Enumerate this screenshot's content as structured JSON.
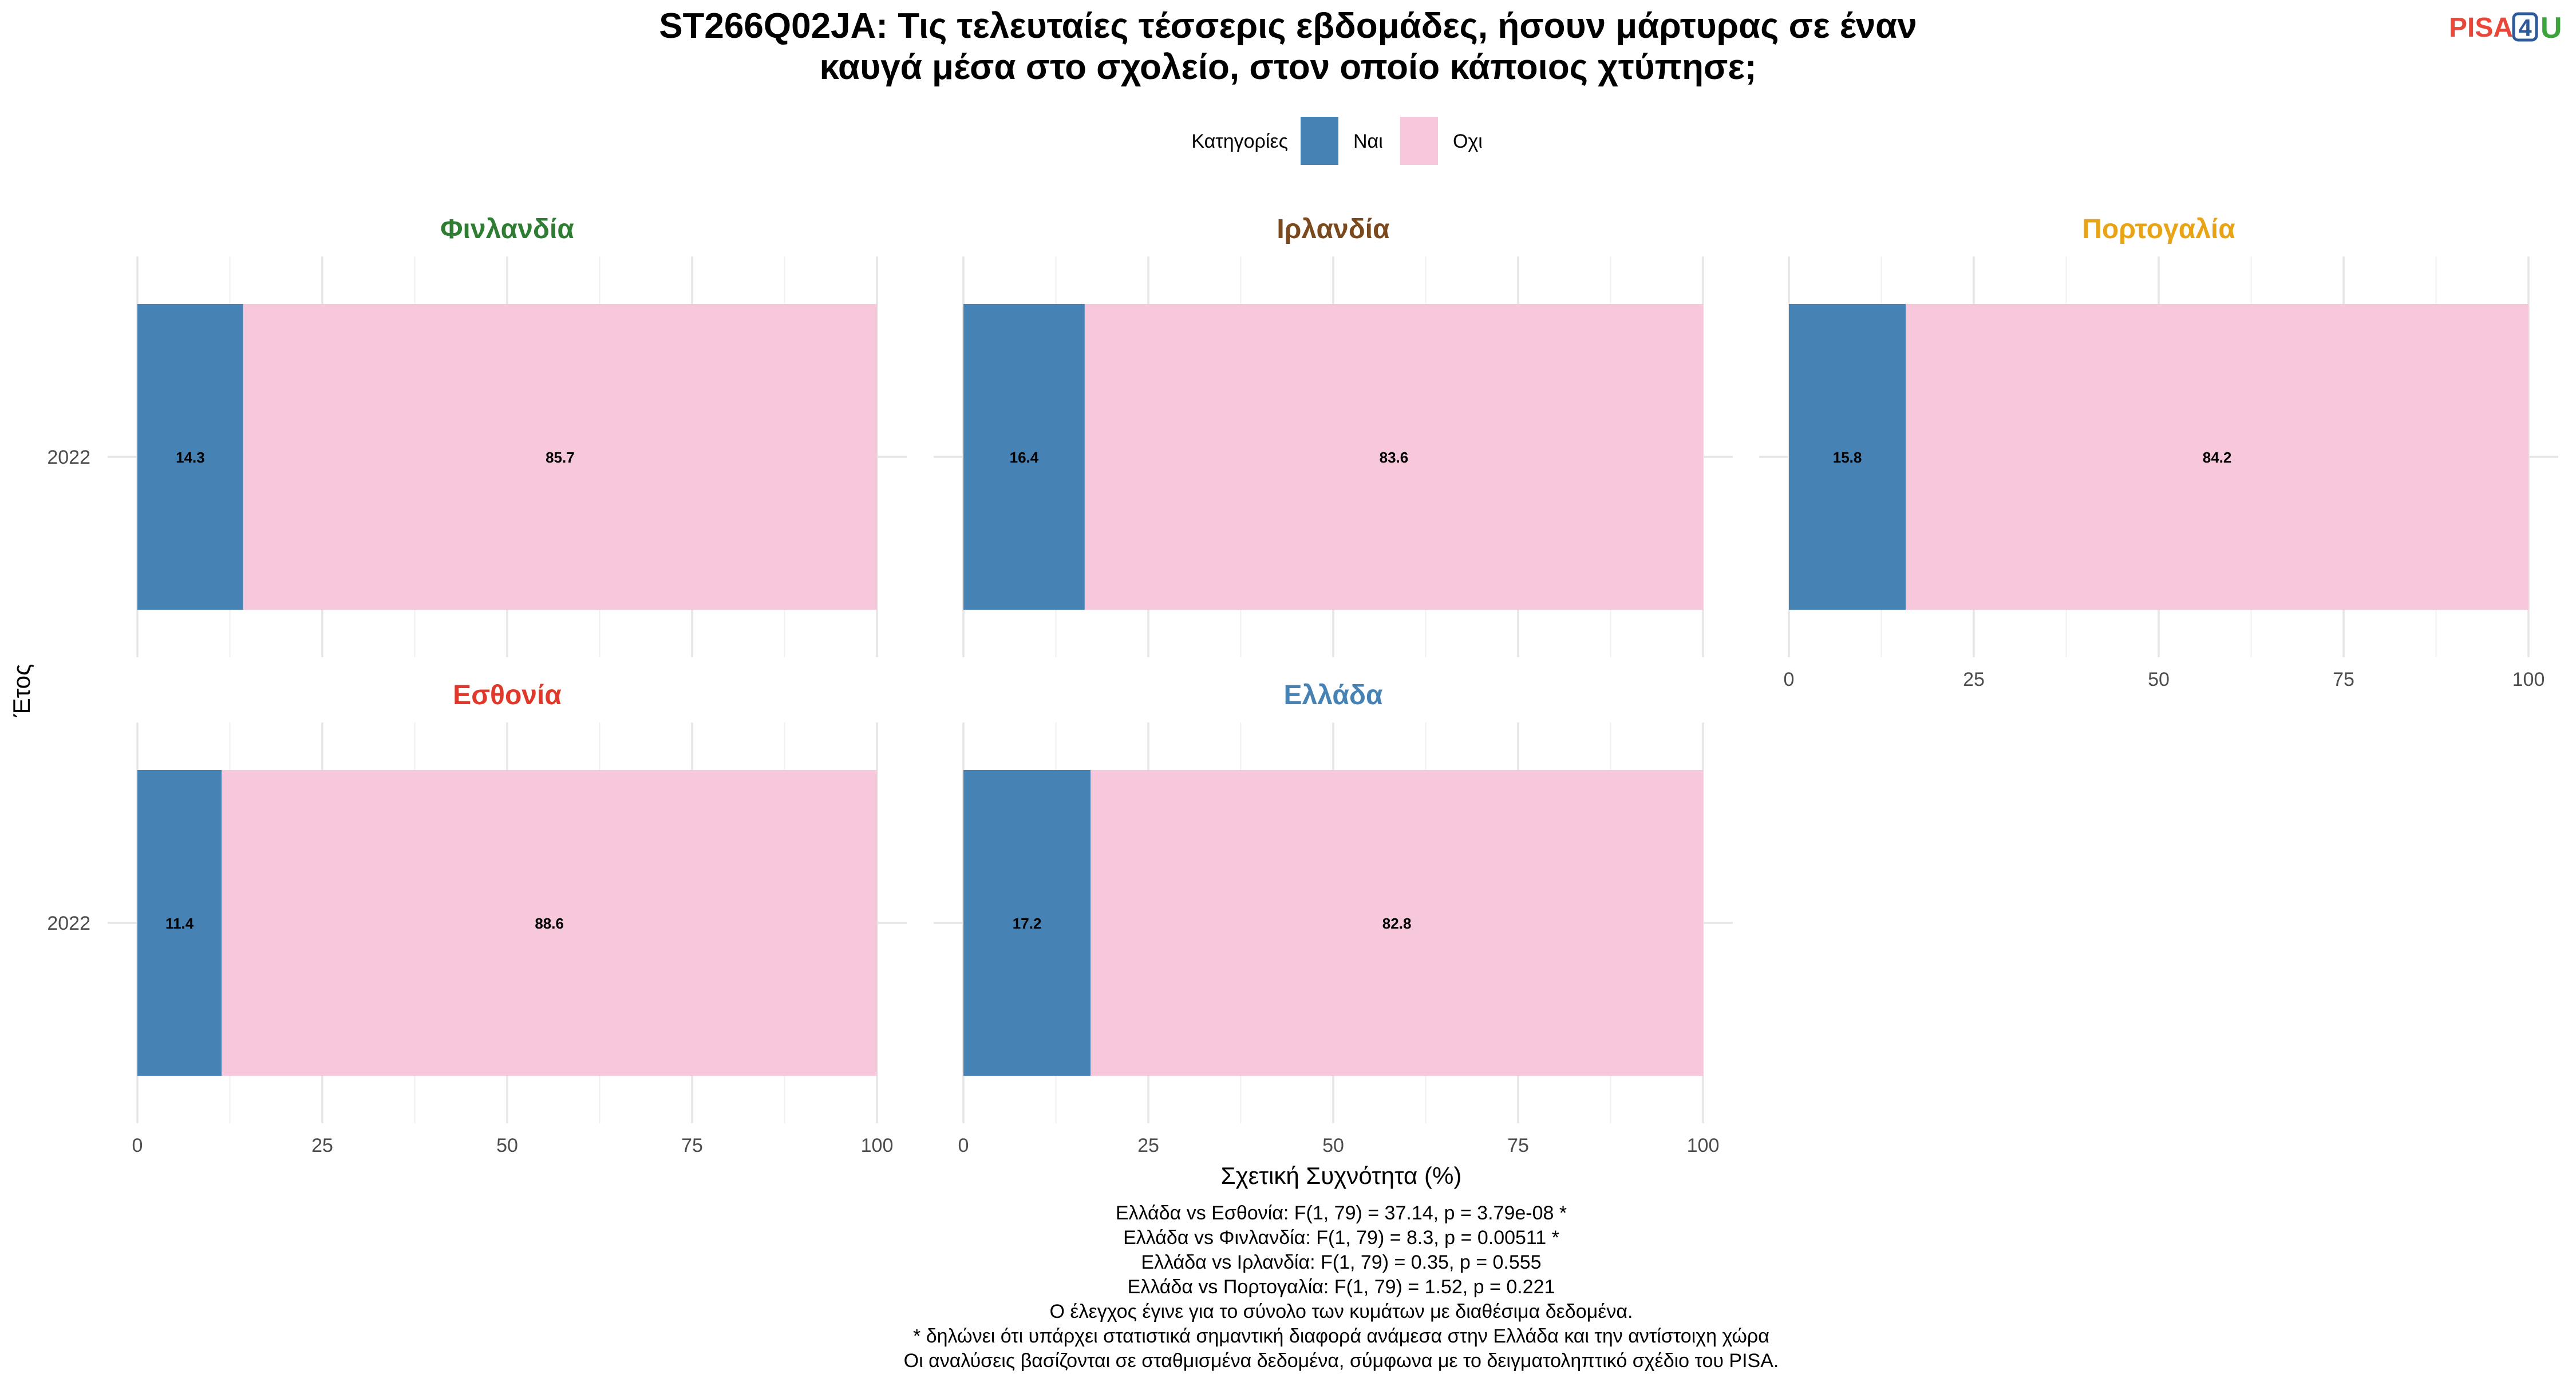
{
  "logo": {
    "part1": "PISA",
    "part2": "4",
    "part3": "U",
    "colors": {
      "part1": "#e8473a",
      "part2": "#2e5a9c",
      "part3": "#3aa53a"
    }
  },
  "chart_data": {
    "type": "bar",
    "stacked": true,
    "orientation": "horizontal",
    "title_lines": [
      "ST266Q02JA: Τις τελευταίες τέσσερις εβδομάδες, ήσουν μάρτυρας σε έναν",
      "καυγά μέσα στο σχολείο, στον οποίο κάποιος χτύπησε;"
    ],
    "legend": {
      "title": "Κατηγορίες",
      "position": "top",
      "entries": [
        {
          "label": "Ναι",
          "color": "#4682b4"
        },
        {
          "label": "Οχι",
          "color": "#f7c7dc"
        }
      ]
    },
    "xlabel": "Σχετική Συχνότητα (%)",
    "ylabel": "Έτος",
    "xlim": [
      0,
      100
    ],
    "x_ticks": [
      "0",
      "25",
      "50",
      "75",
      "100"
    ],
    "grid": true,
    "panels": [
      {
        "name": "Φινλανδία",
        "title_color": "#2e7d32",
        "year": "2022",
        "values": [
          14.3,
          85.7
        ],
        "labels": [
          "14.3",
          "85.7"
        ]
      },
      {
        "name": "Ιρλανδία",
        "title_color": "#7a4a1e",
        "year": "2022",
        "values": [
          16.4,
          83.6
        ],
        "labels": [
          "16.4",
          "83.6"
        ]
      },
      {
        "name": "Πορτογαλία",
        "title_color": "#e8a317",
        "year": "2022",
        "values": [
          15.8,
          84.2
        ],
        "labels": [
          "15.8",
          "84.2"
        ]
      },
      {
        "name": "Εσθονία",
        "title_color": "#e0392b",
        "year": "2022",
        "values": [
          11.4,
          88.6
        ],
        "labels": [
          "11.4",
          "88.6"
        ]
      },
      {
        "name": "Ελλάδα",
        "title_color": "#4682b4",
        "year": "2022",
        "values": [
          17.2,
          82.8
        ],
        "labels": [
          "17.2",
          "82.8"
        ]
      }
    ],
    "caption_lines": [
      "Ελλάδα vs Εσθονία: F(1, 79) = 37.14, p = 3.79e-08 *",
      "Ελλάδα vs Φινλανδία: F(1, 79) = 8.3, p = 0.00511 *",
      "Ελλάδα vs Ιρλανδία: F(1, 79) = 0.35, p = 0.555",
      "Ελλάδα vs Πορτογαλία: F(1, 79) = 1.52, p = 0.221",
      "Ο έλεγχος έγινε για το σύνολο των κυμάτων με διαθέσιμα δεδομένα.",
      "* δηλώνει ότι υπάρχει στατιστικά σημαντική διαφορά ανάμεσα στην Ελλάδα και την αντίστοιχη χώρα",
      "Οι αναλύσεις βασίζονται σε σταθμισμένα δεδομένα, σύμφωνα με το δειγματοληπτικό σχέδιο του PISA."
    ]
  }
}
